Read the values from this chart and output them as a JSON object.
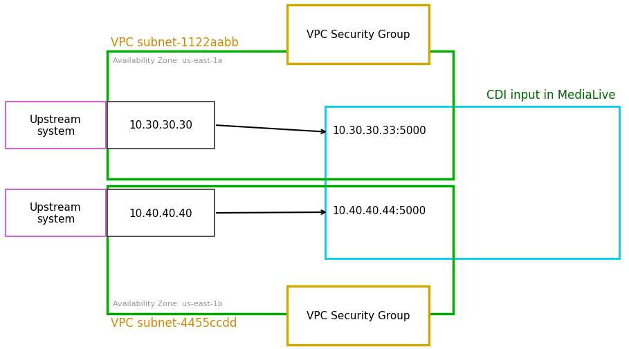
{
  "bg_color": "#ffffff",
  "vpc_subnet1_label": "VPC subnet-1122aabb",
  "vpc_subnet2_label": "VPC subnet-4455ccdd",
  "az1_label": "Availability Zone: us-east-1a",
  "az2_label": "Availability Zone: us-east-1b",
  "vpc_sg_label": "VPC Security Group",
  "cdi_label": "CDI input in MediaLive",
  "upstream1_label": "Upstream\nsystem",
  "upstream2_label": "Upstream\nsystem",
  "src_ip1": "10.30.30.30",
  "src_ip2": "10.40.40.40",
  "dst_ip1": "10.30.30.33:5000",
  "dst_ip2": "10.40.40.44:5000",
  "green_color": "#00aa00",
  "yellow_color": "#ccaa00",
  "cyan_color": "#00ccee",
  "purple_color": "#cc66cc",
  "gray_text": "#999999",
  "cdi_text_color": "#006600"
}
